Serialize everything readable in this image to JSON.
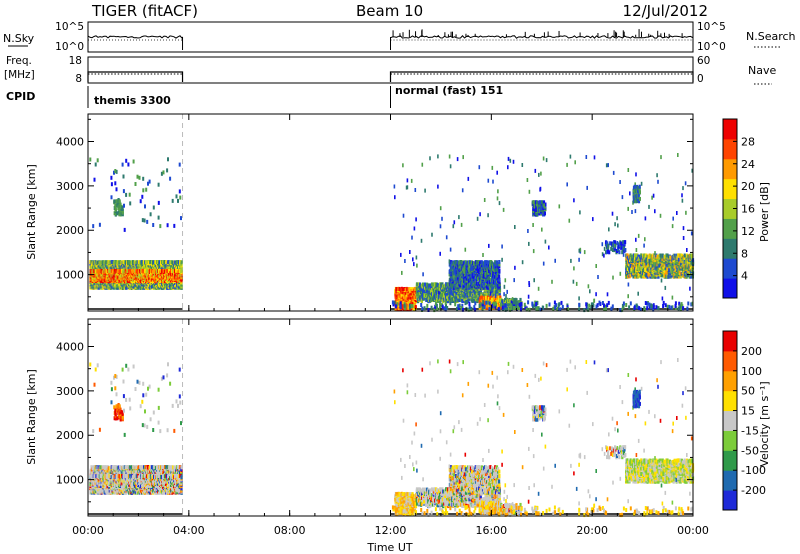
{
  "header": {
    "left_title": "TIGER (fitACF)",
    "center_title": "Beam 10",
    "date": "12/Jul/2012"
  },
  "params": {
    "nsky_label": "N.Sky",
    "nsky_ticks": [
      "10^5",
      "10^0"
    ],
    "nsearch_label": "N.Search",
    "nsearch_ticks": [
      "10^5",
      "10^0"
    ],
    "freq_label_1": "Freq.",
    "freq_label_2": "[MHz]",
    "freq_ticks": [
      "18",
      "8"
    ],
    "nave_label": "Nave",
    "nave_ticks": [
      "60",
      "0"
    ],
    "cpid_label": "CPID",
    "cpid_segments": [
      {
        "start_h": 0,
        "end_h": 3.75,
        "label": "themis 3300"
      },
      {
        "start_h": 12,
        "end_h": 24,
        "label": "normal (fast) 151"
      }
    ]
  },
  "chart_data": [
    {
      "type": "heatmap",
      "name": "power",
      "ylabel": "Slant Range [km]",
      "ylim": [
        180,
        4620
      ],
      "y_ticks": [
        "4000",
        "3000",
        "2000",
        "1000"
      ],
      "y_tick_values": [
        4000,
        3000,
        2000,
        1000
      ],
      "colorbar_label": "Power [dB]",
      "colorbar_ticks": [
        "28",
        "24",
        "20",
        "16",
        "12",
        "8",
        "4"
      ],
      "colorbar_tick_values": [
        28,
        24,
        20,
        16,
        12,
        8,
        4
      ],
      "colorbar_range": [
        0,
        32
      ],
      "colorbar_colors": [
        "#1010e8",
        "#1e4ad0",
        "#2e7a6e",
        "#52a04a",
        "#a8cc2a",
        "#ffe000",
        "#ff9a00",
        "#ff4400",
        "#ee0000"
      ],
      "data_gap_hours": [
        3.75,
        12
      ]
    },
    {
      "type": "heatmap",
      "name": "velocity",
      "ylabel": "Slant Range [km]",
      "ylim": [
        180,
        4620
      ],
      "y_ticks": [
        "4000",
        "3000",
        "2000",
        "1000"
      ],
      "y_tick_values": [
        4000,
        3000,
        2000,
        1000
      ],
      "colorbar_label": "Velocity [m s⁻¹]",
      "colorbar_ticks": [
        "200",
        "100",
        "50",
        "15",
        "-15",
        "-50",
        "-100",
        "-200"
      ],
      "colorbar_colors": [
        "#1e2ad8",
        "#1f6ab0",
        "#2f9a4a",
        "#7ccc3a",
        "#c8c8c8",
        "#ffe000",
        "#ffa000",
        "#ff5a00",
        "#e80000"
      ],
      "data_gap_hours": [
        3.75,
        12
      ]
    }
  ],
  "time_axis": {
    "xlabel": "Time UT",
    "xlim_hours": [
      0,
      24
    ],
    "ticks": [
      "00:00",
      "04:00",
      "08:00",
      "12:00",
      "16:00",
      "20:00",
      "00:00"
    ],
    "tick_hours": [
      0,
      4,
      8,
      12,
      16,
      20,
      24
    ]
  }
}
